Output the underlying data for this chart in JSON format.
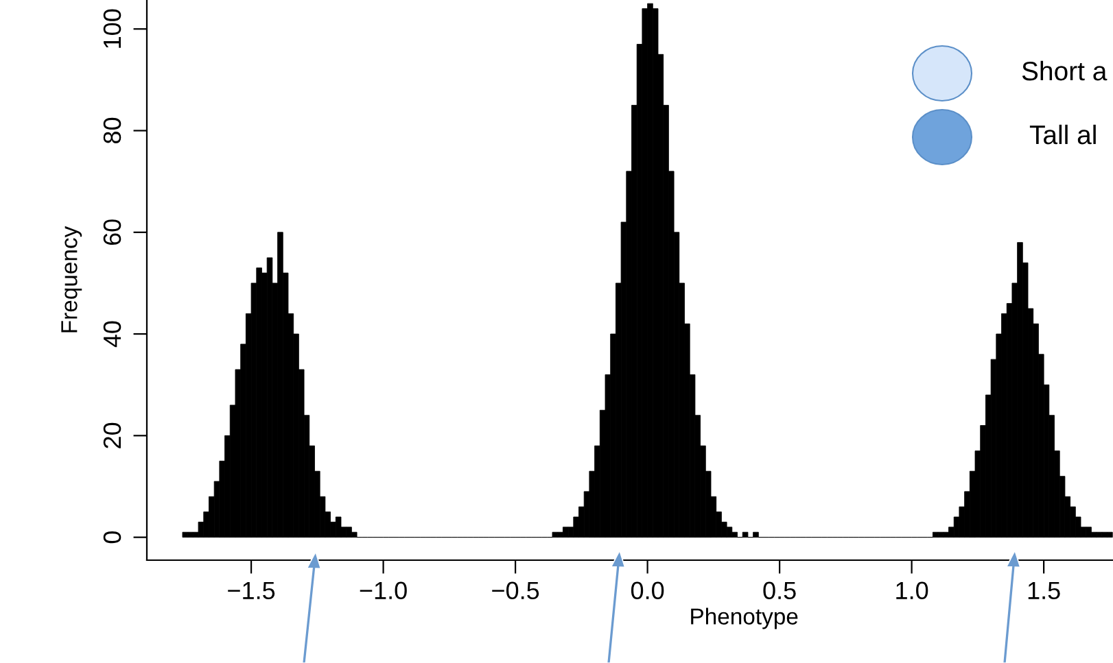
{
  "chart_data": {
    "type": "histogram",
    "xlabel": "Phenotype",
    "ylabel": "Frequency",
    "color": "#000000",
    "bins": [
      -1.76,
      -1.74,
      -1.72,
      -1.7,
      -1.68,
      -1.66,
      -1.64,
      -1.62,
      -1.6,
      -1.58,
      -1.56,
      -1.54,
      -1.52,
      -1.5,
      -1.48,
      -1.46,
      -1.44,
      -1.42,
      -1.4,
      -1.38,
      -1.36,
      -1.34,
      -1.32,
      -1.3,
      -1.28,
      -1.26,
      -1.24,
      -1.22,
      -1.2,
      -1.18,
      -1.16,
      -1.14,
      -1.12,
      -1.1,
      -1.08,
      -1.06,
      -1.04,
      -1.02,
      -1.0,
      -0.98,
      -0.96,
      -0.94,
      -0.92,
      -0.9,
      -0.88,
      -0.86,
      -0.84,
      -0.82,
      -0.8,
      -0.78,
      -0.76,
      -0.74,
      -0.72,
      -0.7,
      -0.68,
      -0.66,
      -0.64,
      -0.62,
      -0.6,
      -0.58,
      -0.56,
      -0.54,
      -0.52,
      -0.5,
      -0.48,
      -0.46,
      -0.44,
      -0.42,
      -0.4,
      -0.38,
      -0.36,
      -0.34,
      -0.32,
      -0.3,
      -0.28,
      -0.26,
      -0.24,
      -0.22,
      -0.2,
      -0.18,
      -0.16,
      -0.14,
      -0.12,
      -0.1,
      -0.08,
      -0.06,
      -0.04,
      -0.02,
      0.0,
      0.02,
      0.04,
      0.06,
      0.08,
      0.1,
      0.12,
      0.14,
      0.16,
      0.18,
      0.2,
      0.22,
      0.24,
      0.26,
      0.28,
      0.3,
      0.32,
      0.34,
      0.36,
      0.38,
      0.4,
      0.42,
      0.44,
      0.46,
      0.48,
      0.5,
      0.52,
      0.54,
      0.56,
      0.58,
      0.6,
      0.62,
      0.64,
      0.66,
      0.68,
      0.7,
      0.72,
      0.74,
      0.76,
      0.78,
      0.8,
      0.82,
      0.84,
      0.86,
      0.88,
      0.9,
      0.92,
      0.94,
      0.96,
      0.98,
      1.0,
      1.02,
      1.04,
      1.06,
      1.08,
      1.1,
      1.12,
      1.14,
      1.16,
      1.18,
      1.2,
      1.22,
      1.24,
      1.26,
      1.28,
      1.3,
      1.32,
      1.34,
      1.36,
      1.38,
      1.4,
      1.42,
      1.44,
      1.46,
      1.48,
      1.5,
      1.52,
      1.54,
      1.56,
      1.58,
      1.6,
      1.62,
      1.64,
      1.66,
      1.68,
      1.7,
      1.72,
      1.74,
      1.76
    ],
    "values": [
      1,
      1,
      1,
      3,
      5,
      8,
      11,
      15,
      20,
      26,
      33,
      38,
      44,
      50,
      53,
      52,
      55,
      50,
      60,
      52,
      44,
      40,
      33,
      24,
      18,
      13,
      8,
      5,
      3,
      4,
      2,
      2,
      1,
      0,
      0,
      0,
      0,
      0,
      0,
      0,
      0,
      0,
      0,
      0,
      0,
      0,
      0,
      0,
      0,
      0,
      0,
      0,
      0,
      0,
      0,
      0,
      0,
      0,
      0,
      0,
      0,
      0,
      0,
      0,
      0,
      0,
      0,
      0,
      0,
      0,
      1,
      1,
      2,
      2,
      4,
      6,
      9,
      13,
      18,
      25,
      32,
      40,
      50,
      62,
      72,
      85,
      97,
      104,
      105,
      104,
      95,
      85,
      72,
      60,
      50,
      42,
      32,
      24,
      18,
      13,
      8,
      5,
      3,
      2,
      1,
      0,
      1,
      0,
      1,
      0,
      0,
      0,
      0,
      0,
      0,
      0,
      0,
      0,
      0,
      0,
      0,
      0,
      0,
      0,
      0,
      0,
      0,
      0,
      0,
      0,
      0,
      0,
      0,
      0,
      0,
      0,
      0,
      0,
      0,
      0,
      0,
      0,
      1,
      1,
      1,
      2,
      4,
      6,
      9,
      13,
      17,
      22,
      28,
      35,
      40,
      44,
      46,
      50,
      58,
      54,
      45,
      42,
      36,
      30,
      24,
      17,
      12,
      8,
      6,
      4,
      2,
      2,
      1,
      1,
      1,
      1
    ],
    "xlim": [
      -1.895,
      1.762
    ],
    "ylim": [
      -4.5,
      105.7
    ],
    "xticks": [
      {
        "value": -1.5,
        "label": "−1.5"
      },
      {
        "value": -1.0,
        "label": "−1.0"
      },
      {
        "value": -0.5,
        "label": "−0.5"
      },
      {
        "value": 0.0,
        "label": "0.0"
      },
      {
        "value": 0.5,
        "label": "0.5"
      },
      {
        "value": 1.0,
        "label": "1.0"
      },
      {
        "value": 1.5,
        "label": "1.5"
      }
    ],
    "yticks": [
      0,
      20,
      40,
      60,
      80,
      100
    ],
    "annotations": [
      "Short a",
      "Tall al"
    ]
  }
}
